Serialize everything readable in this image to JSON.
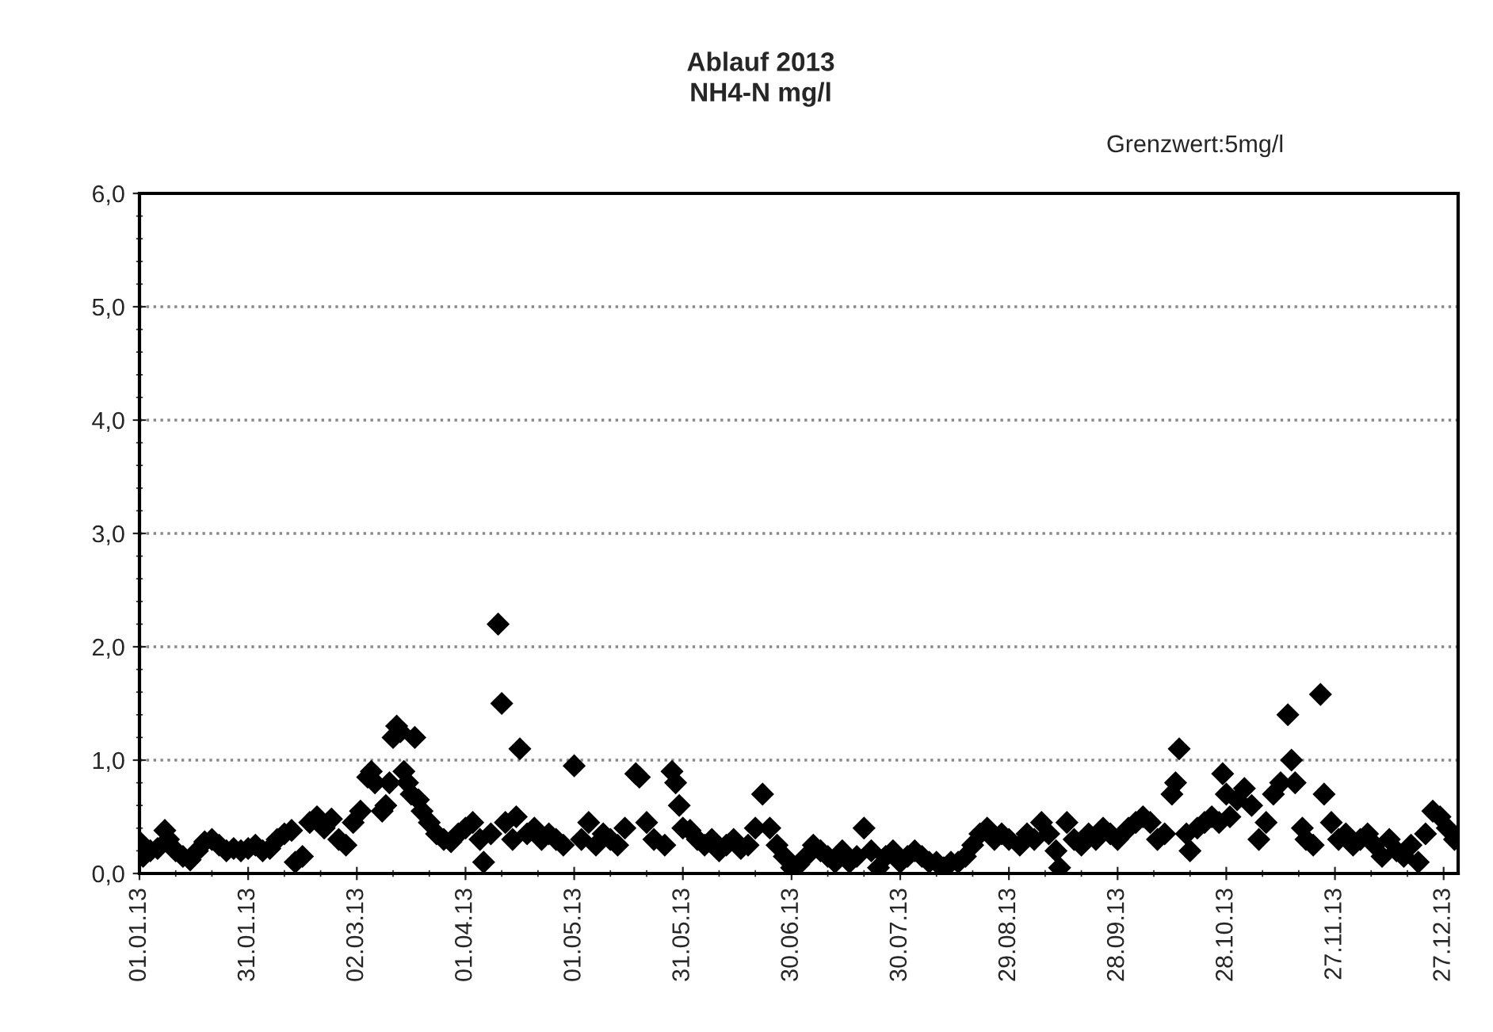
{
  "chart_data": {
    "type": "scatter",
    "title": "Ablauf 2013\nNH4-N mg/l",
    "annotations": [
      "Grenzwert:5mg/l"
    ],
    "marker": "diamond",
    "grid": "y",
    "legend": false,
    "xlim": [
      "2013-01-01",
      "2013-12-31"
    ],
    "xticks": [
      {
        "value": "2013-01-01",
        "label": "01.01.13"
      },
      {
        "value": "2013-01-31",
        "label": "31.01.13"
      },
      {
        "value": "2013-03-02",
        "label": "02.03.13"
      },
      {
        "value": "2013-04-01",
        "label": "01.04.13"
      },
      {
        "value": "2013-05-01",
        "label": "01.05.13"
      },
      {
        "value": "2013-05-31",
        "label": "31.05.13"
      },
      {
        "value": "2013-06-30",
        "label": "30.06.13"
      },
      {
        "value": "2013-07-30",
        "label": "30.07.13"
      },
      {
        "value": "2013-08-29",
        "label": "29.08.13"
      },
      {
        "value": "2013-09-28",
        "label": "28.09.13"
      },
      {
        "value": "2013-10-28",
        "label": "28.10.13"
      },
      {
        "value": "2013-11-27",
        "label": "27.11.13"
      },
      {
        "value": "2013-12-27",
        "label": "27.12.13"
      }
    ],
    "ylim": [
      0,
      6
    ],
    "yticks": [
      {
        "value": 0,
        "label": "0,0"
      },
      {
        "value": 1,
        "label": "1,0"
      },
      {
        "value": 2,
        "label": "2,0"
      },
      {
        "value": 3,
        "label": "3,0"
      },
      {
        "value": 4,
        "label": "4,0"
      },
      {
        "value": 5,
        "label": "5,0"
      },
      {
        "value": 6,
        "label": "6,0"
      }
    ],
    "series": [
      {
        "color": "#000000",
        "x": [
          "2013-01-01",
          "2013-01-02",
          "2013-01-04",
          "2013-01-06",
          "2013-01-08",
          "2013-01-09",
          "2013-01-11",
          "2013-01-13",
          "2013-01-15",
          "2013-01-17",
          "2013-01-19",
          "2013-01-21",
          "2013-01-23",
          "2013-01-25",
          "2013-01-27",
          "2013-01-29",
          "2013-01-31",
          "2013-02-02",
          "2013-02-04",
          "2013-02-06",
          "2013-02-08",
          "2013-02-10",
          "2013-02-12",
          "2013-02-13",
          "2013-02-15",
          "2013-02-17",
          "2013-02-19",
          "2013-02-21",
          "2013-02-23",
          "2013-02-25",
          "2013-02-27",
          "2013-03-01",
          "2013-03-03",
          "2013-03-05",
          "2013-03-06",
          "2013-03-07",
          "2013-03-09",
          "2013-03-10",
          "2013-03-11",
          "2013-03-12",
          "2013-03-13",
          "2013-03-14",
          "2013-03-15",
          "2013-03-16",
          "2013-03-17",
          "2013-03-18",
          "2013-03-19",
          "2013-03-20",
          "2013-03-22",
          "2013-03-24",
          "2013-03-26",
          "2013-03-28",
          "2013-03-30",
          "2013-04-01",
          "2013-04-03",
          "2013-04-05",
          "2013-04-06",
          "2013-04-08",
          "2013-04-10",
          "2013-04-11",
          "2013-04-12",
          "2013-04-14",
          "2013-04-15",
          "2013-04-16",
          "2013-04-18",
          "2013-04-20",
          "2013-04-22",
          "2013-04-24",
          "2013-04-26",
          "2013-04-28",
          "2013-05-01",
          "2013-05-03",
          "2013-05-05",
          "2013-05-07",
          "2013-05-09",
          "2013-05-11",
          "2013-05-13",
          "2013-05-15",
          "2013-05-18",
          "2013-05-19",
          "2013-05-21",
          "2013-05-23",
          "2013-05-26",
          "2013-05-28",
          "2013-05-29",
          "2013-05-30",
          "2013-05-31",
          "2013-06-02",
          "2013-06-04",
          "2013-06-06",
          "2013-06-08",
          "2013-06-10",
          "2013-06-12",
          "2013-06-14",
          "2013-06-16",
          "2013-06-18",
          "2013-06-20",
          "2013-06-22",
          "2013-06-24",
          "2013-06-26",
          "2013-06-28",
          "2013-06-30",
          "2013-07-02",
          "2013-07-04",
          "2013-07-06",
          "2013-07-08",
          "2013-07-10",
          "2013-07-12",
          "2013-07-14",
          "2013-07-16",
          "2013-07-18",
          "2013-07-20",
          "2013-07-22",
          "2013-07-24",
          "2013-07-26",
          "2013-07-28",
          "2013-07-30",
          "2013-08-01",
          "2013-08-03",
          "2013-08-05",
          "2013-08-07",
          "2013-08-09",
          "2013-08-11",
          "2013-08-13",
          "2013-08-15",
          "2013-08-17",
          "2013-08-19",
          "2013-08-21",
          "2013-08-23",
          "2013-08-25",
          "2013-08-27",
          "2013-08-29",
          "2013-09-01",
          "2013-09-03",
          "2013-09-05",
          "2013-09-07",
          "2013-09-09",
          "2013-09-11",
          "2013-09-12",
          "2013-09-14",
          "2013-09-16",
          "2013-09-18",
          "2013-09-20",
          "2013-09-22",
          "2013-09-24",
          "2013-09-26",
          "2013-09-28",
          "2013-10-01",
          "2013-10-03",
          "2013-10-05",
          "2013-10-07",
          "2013-10-09",
          "2013-10-11",
          "2013-10-13",
          "2013-10-14",
          "2013-10-15",
          "2013-10-17",
          "2013-10-18",
          "2013-10-20",
          "2013-10-22",
          "2013-10-24",
          "2013-10-26",
          "2013-10-27",
          "2013-10-28",
          "2013-10-29",
          "2013-10-31",
          "2013-11-02",
          "2013-11-04",
          "2013-11-06",
          "2013-11-08",
          "2013-11-10",
          "2013-11-12",
          "2013-11-14",
          "2013-11-15",
          "2013-11-16",
          "2013-11-18",
          "2013-11-19",
          "2013-11-21",
          "2013-11-23",
          "2013-11-24",
          "2013-11-26",
          "2013-11-28",
          "2013-11-30",
          "2013-12-02",
          "2013-12-04",
          "2013-12-06",
          "2013-12-08",
          "2013-12-10",
          "2013-12-12",
          "2013-12-14",
          "2013-12-16",
          "2013-12-18",
          "2013-12-20",
          "2013-12-22",
          "2013-12-24",
          "2013-12-26",
          "2013-12-28",
          "2013-12-30"
        ],
        "values": [
          0.28,
          0.15,
          0.2,
          0.22,
          0.38,
          0.3,
          0.2,
          0.15,
          0.12,
          0.2,
          0.28,
          0.3,
          0.25,
          0.2,
          0.22,
          0.2,
          0.22,
          0.25,
          0.2,
          0.22,
          0.3,
          0.35,
          0.38,
          0.1,
          0.15,
          0.45,
          0.5,
          0.4,
          0.48,
          0.3,
          0.25,
          0.45,
          0.55,
          0.85,
          0.9,
          0.8,
          0.55,
          0.6,
          0.8,
          1.2,
          1.3,
          1.25,
          0.9,
          0.8,
          0.7,
          1.2,
          0.65,
          0.55,
          0.45,
          0.35,
          0.3,
          0.28,
          0.35,
          0.4,
          0.45,
          0.3,
          0.1,
          0.35,
          2.2,
          1.5,
          0.45,
          0.3,
          0.5,
          1.1,
          0.35,
          0.4,
          0.3,
          0.35,
          0.3,
          0.25,
          0.95,
          0.3,
          0.45,
          0.25,
          0.35,
          0.3,
          0.25,
          0.4,
          0.88,
          0.85,
          0.45,
          0.3,
          0.25,
          0.9,
          0.8,
          0.6,
          0.4,
          0.38,
          0.3,
          0.25,
          0.3,
          0.2,
          0.25,
          0.3,
          0.22,
          0.25,
          0.4,
          0.7,
          0.4,
          0.25,
          0.15,
          0.05,
          0.08,
          0.15,
          0.25,
          0.2,
          0.15,
          0.1,
          0.2,
          0.1,
          0.15,
          0.4,
          0.2,
          0.05,
          0.15,
          0.2,
          0.1,
          0.15,
          0.2,
          0.15,
          0.1,
          0.1,
          0.05,
          0.1,
          0.1,
          0.15,
          0.25,
          0.35,
          0.4,
          0.3,
          0.35,
          0.3,
          0.25,
          0.35,
          0.3,
          0.45,
          0.35,
          0.2,
          0.05,
          0.45,
          0.3,
          0.25,
          0.35,
          0.3,
          0.4,
          0.35,
          0.3,
          0.4,
          0.45,
          0.5,
          0.45,
          0.3,
          0.35,
          0.7,
          0.8,
          1.1,
          0.35,
          0.2,
          0.4,
          0.45,
          0.5,
          0.45,
          0.88,
          0.7,
          0.5,
          0.65,
          0.75,
          0.6,
          0.3,
          0.45,
          0.7,
          0.8,
          1.4,
          1.0,
          0.8,
          0.4,
          0.3,
          0.25,
          1.58,
          0.7,
          0.45,
          0.3,
          0.35,
          0.25,
          0.3,
          0.35,
          0.25,
          0.15,
          0.3,
          0.2,
          0.15,
          0.25,
          0.1,
          0.35,
          0.55,
          0.5,
          0.4,
          0.3
        ]
      }
    ]
  }
}
